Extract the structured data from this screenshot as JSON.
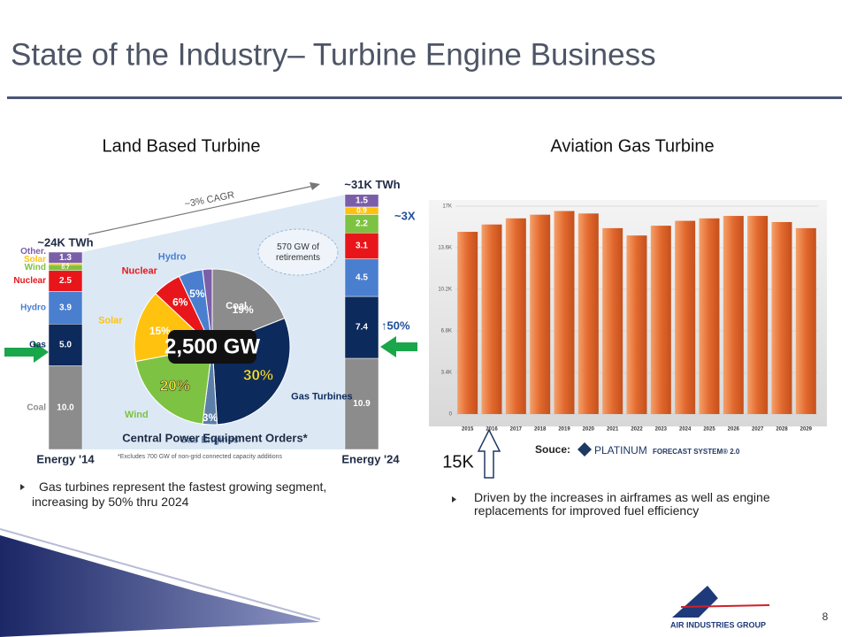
{
  "title": "State of the Industry– Turbine Engine Business",
  "left": {
    "heading": "Land Based Turbine",
    "stack": {
      "sources": [
        "Coal",
        "Gas",
        "Hydro",
        "Nuclear",
        "Wind",
        "Solar",
        "Other."
      ],
      "colors": [
        "#8c8c8c",
        "#0d2a5c",
        "#4a7fd0",
        "#e8161b",
        "#7dc242",
        "#ffc20e",
        "#7b5ea8"
      ],
      "bars": [
        {
          "label": "Energy '14",
          "total_label": "~24K TWh",
          "values": [
            10.0,
            5.0,
            3.9,
            2.5,
            0.7,
            0.2,
            1.3
          ],
          "value_labels": [
            "10.0",
            "5.0",
            "3.9",
            "2.5",
            "0.7",
            "0.2",
            "1.3"
          ]
        },
        {
          "label": "Energy '24",
          "total_label": "~31K TWh",
          "values": [
            10.9,
            7.4,
            4.5,
            3.1,
            2.2,
            0.9,
            1.5
          ],
          "value_labels": [
            "10.9",
            "7.4",
            "4.5",
            "3.1",
            "2.2",
            "0.9",
            "1.5"
          ]
        }
      ]
    },
    "cagr": "~3% CAGR",
    "growth_renewables": "~3X",
    "growth_gas": "↑50%",
    "retirements": "570 GW of retirements",
    "pie": {
      "title": "Central Power Equipment Orders*",
      "center_label": "2,500 GW",
      "categories": [
        "Coal",
        "Gas Turbines",
        "Gas Engines",
        "Wind",
        "Solar",
        "Nuclear",
        "Hydro",
        null
      ],
      "values": [
        19,
        30,
        3,
        20,
        15,
        6,
        5,
        2
      ],
      "value_labels": [
        "19%",
        "30%",
        "3%",
        "20%",
        "15%",
        "6%",
        "5%",
        null
      ],
      "colors": [
        "#8c8c8c",
        "#0d2a5c",
        "#5b7fa8",
        "#7dc242",
        "#ffc20e",
        "#e8161b",
        "#4a7fd0",
        "#7b5ea8"
      ]
    },
    "footnote": "*Excludes 700 GW of non-grid connected capacity additions",
    "bullet": "Gas turbines represent the fastest growing segment, increasing by 50% thru 2024"
  },
  "right": {
    "heading": "Aviation Gas Turbine",
    "chart": {
      "type": "bar",
      "categories": [
        "2015",
        "2016",
        "2017",
        "2018",
        "2019",
        "2020",
        "2021",
        "2022",
        "2023",
        "2024",
        "2025",
        "2026",
        "2027",
        "2028",
        "2029"
      ],
      "values": [
        14.9,
        15.5,
        16.0,
        16.3,
        16.6,
        16.4,
        15.2,
        14.6,
        15.4,
        15.8,
        16.0,
        16.2,
        16.2,
        15.7,
        15.2
      ],
      "ylim": [
        0,
        17
      ],
      "yticks": [
        0,
        {
          "value": 3.4,
          "label": "3.4K"
        },
        {
          "value": 6.8,
          "label": "6.8K"
        },
        {
          "value": 10.2,
          "label": "10.2K"
        },
        {
          "value": 13.6,
          "label": "13.6K"
        },
        {
          "value": 17,
          "label": "17K"
        }
      ],
      "annotation": "15K",
      "source_prefix": "Souce:",
      "source_brand": "PLATINUM",
      "source_suffix": "FORECAST SYSTEM® 2.0"
    },
    "bullet": "Driven by the increases in airframes as well as engine replacements for improved fuel efficiency"
  },
  "footer": {
    "logo_text": "AIR INDUSTRIES GROUP",
    "page_number": "8"
  }
}
